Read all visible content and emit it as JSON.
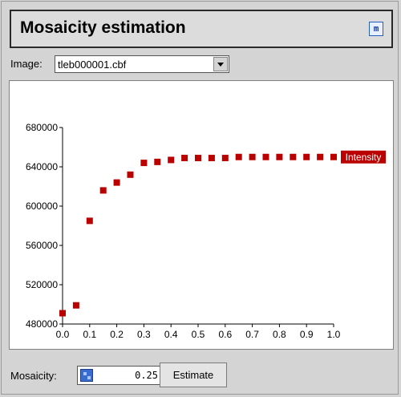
{
  "header": {
    "title": "Mosaicity estimation",
    "minimize_icon": "m-icon"
  },
  "image_select": {
    "label": "Image:",
    "value": "tleb000001.cbf"
  },
  "chart_data": {
    "type": "scatter",
    "series": [
      {
        "name": "Intensity",
        "color": "#bb0000",
        "x": [
          0.0,
          0.05,
          0.1,
          0.15,
          0.2,
          0.25,
          0.3,
          0.35,
          0.4,
          0.45,
          0.5,
          0.55,
          0.6,
          0.65,
          0.7,
          0.75,
          0.8,
          0.85,
          0.9,
          0.95,
          1.0
        ],
        "y": [
          491000,
          499000,
          585000,
          616000,
          624000,
          632000,
          644000,
          645000,
          647000,
          649000,
          649000,
          649000,
          649000,
          650000,
          650000,
          650000,
          650000,
          650000,
          650000,
          650000,
          650000
        ]
      }
    ],
    "xlim": [
      0.0,
      1.0
    ],
    "ylim": [
      480000,
      680000
    ],
    "xticks": [
      "0.0",
      "0.1",
      "0.2",
      "0.3",
      "0.4",
      "0.5",
      "0.6",
      "0.7",
      "0.8",
      "0.9",
      "1.0"
    ],
    "yticks": [
      "480000",
      "520000",
      "560000",
      "600000",
      "640000",
      "680000"
    ],
    "legend": "right",
    "grid": false
  },
  "mosaicity": {
    "label": "Mosaicity:",
    "value": "0.25",
    "icon": "spin-icon"
  },
  "estimate_button": {
    "label": "Estimate"
  }
}
